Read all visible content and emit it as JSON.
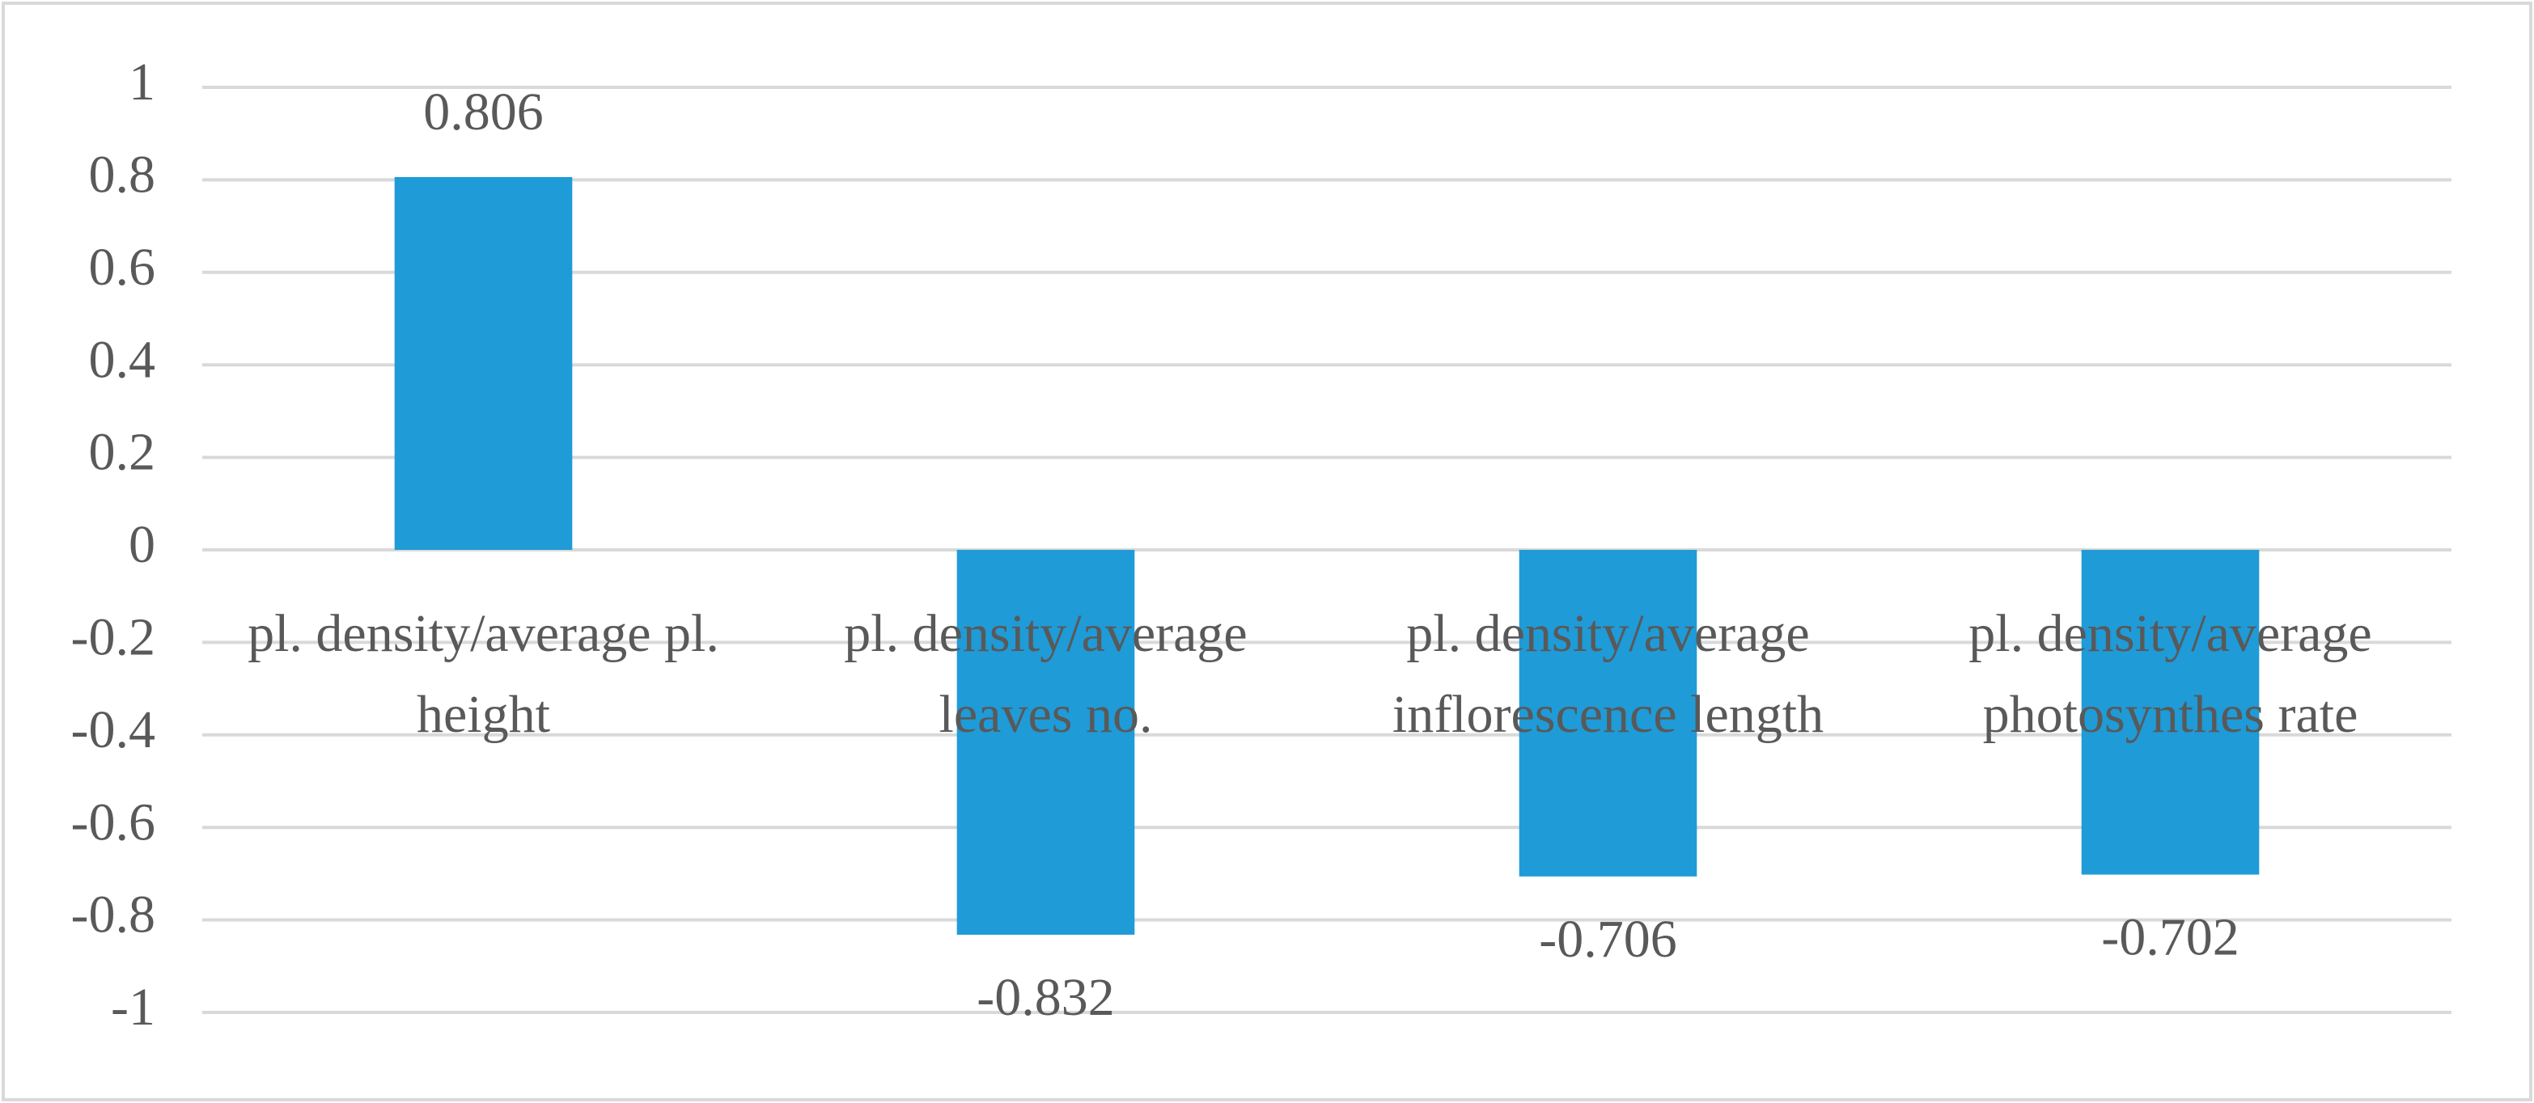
{
  "chart_data": {
    "type": "bar",
    "categories": [
      "pl. density/average pl. height",
      "pl. density/average leaves no.",
      "pl. density/average inflorescence length",
      "pl. density/average photosynthes rate"
    ],
    "values": [
      0.806,
      -0.832,
      -0.706,
      -0.702
    ],
    "color": "#1f9bd7",
    "ylim": [
      -1,
      1
    ],
    "yticks": [
      -1,
      -0.8,
      -0.6,
      -0.4,
      -0.2,
      0,
      0.2,
      0.4,
      0.6,
      0.8,
      1
    ],
    "grid": true
  }
}
